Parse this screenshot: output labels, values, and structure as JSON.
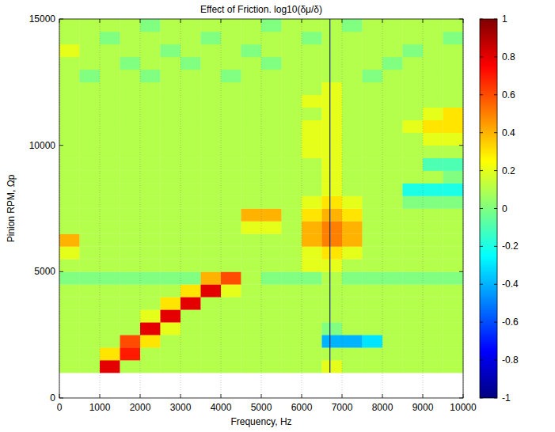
{
  "chart_data": {
    "type": "heatmap",
    "title": "Effect of Friction.  log10(δμ/δ)",
    "x_label": "Frequency, Hz",
    "y_label": "Pinion RPM, Ωp",
    "xlim": [
      0,
      10000
    ],
    "ylim": [
      0,
      15000
    ],
    "xticks": [
      0,
      1000,
      2000,
      3000,
      4000,
      5000,
      6000,
      7000,
      8000,
      9000,
      10000
    ],
    "yticks": [
      0,
      5000,
      10000,
      15000
    ],
    "grid": true,
    "reference_line_x": 6700,
    "zlim": [
      -1,
      1
    ],
    "zticks": [
      -1,
      -0.8,
      -0.6,
      -0.4,
      -0.2,
      0,
      0.2,
      0.4,
      0.6,
      0.8,
      1
    ],
    "x": [
      250,
      750,
      1250,
      1750,
      2250,
      2750,
      3250,
      3750,
      4250,
      4750,
      5250,
      5750,
      6250,
      6750,
      7250,
      7750,
      8250,
      8750,
      9250,
      9750
    ],
    "y": [
      1250,
      1750,
      2250,
      2750,
      3250,
      3750,
      4250,
      4750,
      5250,
      5750,
      6250,
      6750,
      7250,
      7750,
      8250,
      8750,
      9250,
      9750,
      10250,
      10750,
      11250,
      11750,
      12250,
      12750,
      13250,
      13750,
      14250,
      14750
    ],
    "z": [
      [
        0.1,
        0.1,
        0.8,
        0.1,
        0.1,
        0.1,
        0.1,
        0.1,
        0.1,
        0.1,
        0.1,
        0.1,
        0.1,
        0.2,
        0.1,
        0.1,
        0.1,
        0.1,
        0.1,
        0.1
      ],
      [
        0.1,
        0.1,
        0.3,
        0.7,
        0.1,
        0.1,
        0.1,
        0.1,
        0.1,
        0.1,
        0.1,
        0.1,
        0.1,
        0.1,
        0.1,
        0.1,
        0.1,
        0.1,
        0.1,
        0.1
      ],
      [
        0.1,
        0.1,
        0.1,
        0.6,
        0.3,
        0.1,
        0.1,
        0.1,
        0.1,
        0.1,
        0.1,
        0.1,
        0.1,
        -0.4,
        -0.4,
        -0.3,
        0.1,
        0.1,
        0.1,
        0.1
      ],
      [
        0.1,
        0.1,
        0.1,
        0.1,
        0.8,
        0.2,
        0.1,
        0.1,
        0.1,
        0.1,
        0.1,
        0.1,
        0.1,
        0,
        0.1,
        0.1,
        0.1,
        0.1,
        0.1,
        0.1
      ],
      [
        0.1,
        0.1,
        0.1,
        0.1,
        0.2,
        0.8,
        0.1,
        0.1,
        0.1,
        0.1,
        0.1,
        0.1,
        0.1,
        0.1,
        0.1,
        0.1,
        0.1,
        0.1,
        0.1,
        0.1
      ],
      [
        0.1,
        0.1,
        0.1,
        0.1,
        0.1,
        0.3,
        0.8,
        0.1,
        0.1,
        0.1,
        0.1,
        0.1,
        0.1,
        0.1,
        0.1,
        0.1,
        0.1,
        0.1,
        0.1,
        0.1
      ],
      [
        0.1,
        0.1,
        0.1,
        0.1,
        0.1,
        0.1,
        0.3,
        0.8,
        0.2,
        0.1,
        0.1,
        0.1,
        0.1,
        0.1,
        0.1,
        0.1,
        0.1,
        0.1,
        0.1,
        0.1
      ],
      [
        0,
        0,
        0,
        0,
        0,
        0,
        0,
        0.4,
        0.6,
        0.1,
        0,
        0,
        0,
        0.1,
        0,
        0,
        0,
        0,
        0,
        0
      ],
      [
        0.1,
        0.1,
        0.1,
        0.1,
        0.1,
        0.1,
        0.1,
        0.1,
        0.1,
        0.1,
        0.1,
        0.1,
        0.2,
        0.2,
        0.1,
        0.1,
        0.1,
        0.1,
        0.1,
        0.1
      ],
      [
        0.2,
        0.1,
        0.1,
        0.1,
        0.1,
        0.1,
        0.1,
        0.1,
        0.1,
        0.1,
        0.1,
        0.1,
        0.2,
        0.3,
        0.2,
        0.1,
        0.1,
        0.1,
        0.1,
        0.1
      ],
      [
        0.4,
        0.1,
        0.1,
        0.1,
        0.1,
        0.1,
        0.1,
        0.1,
        0.1,
        0.1,
        0.1,
        0.1,
        0.4,
        0.5,
        0.4,
        0.1,
        0.1,
        0.1,
        0.1,
        0.1
      ],
      [
        0.1,
        0.1,
        0.1,
        0.1,
        0.1,
        0.1,
        0.1,
        0.1,
        0.1,
        0.2,
        0.2,
        0.1,
        0.4,
        0.5,
        0.4,
        0.1,
        0.1,
        0.1,
        0.1,
        0.1
      ],
      [
        0.1,
        0.1,
        0.1,
        0.1,
        0.1,
        0.1,
        0.1,
        0.1,
        0.1,
        0.4,
        0.4,
        0.1,
        0.3,
        0.4,
        0.3,
        0.1,
        0.1,
        0.1,
        0.1,
        0.1
      ],
      [
        0.1,
        0.1,
        0.1,
        0.1,
        0.1,
        0.1,
        0.1,
        0.1,
        0.1,
        0.1,
        0.1,
        0.1,
        0.2,
        0.3,
        0.2,
        0.1,
        0.1,
        0,
        0,
        0
      ],
      [
        0.1,
        0.1,
        0.1,
        0.1,
        0.1,
        0.1,
        0.1,
        0.1,
        0.1,
        0.1,
        0.1,
        0.1,
        0.1,
        0.2,
        0.1,
        0.1,
        0.1,
        -0.2,
        -0.2,
        -0.2
      ],
      [
        0.1,
        0.1,
        0.1,
        0.1,
        0.1,
        0.1,
        0.1,
        0.1,
        0.1,
        0.1,
        0.1,
        0.1,
        0.1,
        0.2,
        0.1,
        0.1,
        0.1,
        0.1,
        0.1,
        0
      ],
      [
        0.1,
        0.1,
        0.1,
        0.1,
        0.1,
        0.1,
        0.1,
        0.1,
        0.1,
        0.1,
        0.1,
        0.1,
        0.1,
        0.2,
        0.1,
        0.1,
        0.1,
        0.1,
        -0.1,
        -0.1
      ],
      [
        0.1,
        0.1,
        0.1,
        0.1,
        0.1,
        0.1,
        0.1,
        0.1,
        0.1,
        0.1,
        0.1,
        0.1,
        0.2,
        0.2,
        0.1,
        0.1,
        0.1,
        0.1,
        0.1,
        0.1
      ],
      [
        0.1,
        0.1,
        0.1,
        0.1,
        0.1,
        0.1,
        0.1,
        0.1,
        0.1,
        0.1,
        0.1,
        0.1,
        0.2,
        0.2,
        0.1,
        0.1,
        0.1,
        0.1,
        0.2,
        0.2
      ],
      [
        0.1,
        0.1,
        0.1,
        0.1,
        0.1,
        0.1,
        0.1,
        0.1,
        0.1,
        0.1,
        0.1,
        0.1,
        0.2,
        0.2,
        0.1,
        0.1,
        0.1,
        0.2,
        0.3,
        0.3
      ],
      [
        0.1,
        0.1,
        0.1,
        0.1,
        0.1,
        0.1,
        0.1,
        0.1,
        0.1,
        0.1,
        0.1,
        0.1,
        0.1,
        0.2,
        0.1,
        0.1,
        0.1,
        0.1,
        0.2,
        0.3
      ],
      [
        0.1,
        0.1,
        0.1,
        0.1,
        0.1,
        0.1,
        0.1,
        0.1,
        0.1,
        0.1,
        0.1,
        0.1,
        0.2,
        0.2,
        0.1,
        0.1,
        0.1,
        0.1,
        0.1,
        0.1
      ],
      [
        0.1,
        0.1,
        0.1,
        0.1,
        0.1,
        0.1,
        0.1,
        0.1,
        0.1,
        0.1,
        0.1,
        0.1,
        0.1,
        0.2,
        0.1,
        0.1,
        0.1,
        0.1,
        0.1,
        0.1
      ],
      [
        0.1,
        0,
        0.1,
        0.1,
        0,
        0.1,
        0.1,
        0.1,
        0,
        0.1,
        0.1,
        0.1,
        0.1,
        0.1,
        0.1,
        0,
        0.1,
        0.1,
        0.1,
        0.1
      ],
      [
        0.1,
        0.1,
        0.1,
        0,
        0.1,
        0.1,
        0,
        0.1,
        0.1,
        0.1,
        0,
        0.1,
        0.1,
        0.1,
        0.1,
        0.1,
        0,
        0.1,
        0.1,
        0.1
      ],
      [
        0.2,
        0.1,
        0.1,
        0.1,
        0.1,
        0,
        0.1,
        0.1,
        0.1,
        0,
        0.1,
        0.1,
        0.1,
        0.1,
        0.1,
        0.1,
        0.1,
        0,
        0.1,
        0.1
      ],
      [
        0.1,
        0.1,
        0,
        0.1,
        0.1,
        0.1,
        0.1,
        0,
        0.1,
        0.1,
        0.1,
        0.1,
        0,
        0.1,
        0.1,
        0.1,
        0.1,
        0.1,
        0.1,
        0
      ],
      [
        0.1,
        0.1,
        0.1,
        0.1,
        0,
        0.1,
        0.1,
        0.1,
        0.1,
        0.1,
        0,
        0.1,
        0.1,
        0.1,
        0,
        0.1,
        0.1,
        0.1,
        0.1,
        0.1
      ]
    ]
  }
}
